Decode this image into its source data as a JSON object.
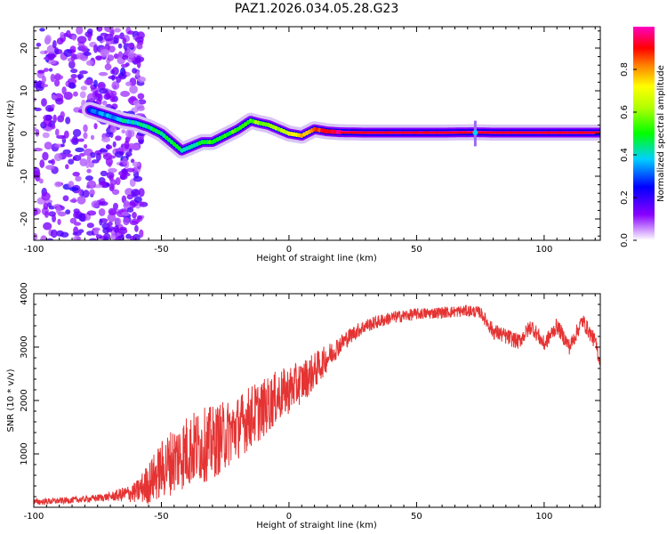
{
  "chart_data": [
    {
      "type": "heatmap",
      "title": "PAZ1.2026.034.05.28.G23",
      "xlabel": "Height of straight line (km)",
      "ylabel": "Frequency (Hz)",
      "xlim": [
        -100,
        122
      ],
      "ylim": [
        -25,
        25
      ],
      "xticks": [
        "-100",
        "-50",
        "0",
        "50",
        "100"
      ],
      "yticks": [
        "-20",
        "-10",
        "0",
        "10",
        "20"
      ],
      "colorbar": {
        "label": "Normalized spectral amplitude",
        "range": [
          0,
          1
        ],
        "ticks": [
          "0.0",
          "0.2",
          "0.4",
          "0.6",
          "0.8"
        ]
      },
      "ridge": {
        "x": [
          -78,
          -70,
          -65,
          -60,
          -55,
          -50,
          -46,
          -42,
          -38,
          -34,
          -30,
          -25,
          -20,
          -15,
          -12,
          -8,
          -4,
          0,
          5,
          10,
          15,
          20,
          30,
          60,
          73,
          80,
          100,
          122
        ],
        "y": [
          5.5,
          4,
          3,
          2.5,
          1.5,
          0,
          -2,
          -4,
          -3,
          -2,
          -2,
          -0.5,
          1,
          3,
          2.5,
          2,
          1,
          0,
          -0.5,
          1,
          0.5,
          0.3,
          0.2,
          0.2,
          0.3,
          0.2,
          0.2,
          0.2
        ],
        "amp": [
          0.3,
          0.35,
          0.4,
          0.4,
          0.45,
          0.45,
          0.5,
          0.45,
          0.4,
          0.5,
          0.5,
          0.5,
          0.55,
          0.55,
          0.6,
          0.6,
          0.6,
          0.7,
          0.75,
          0.85,
          0.9,
          0.95,
          1,
          1,
          1,
          1,
          1,
          1
        ]
      },
      "noise_region_x": [
        -100,
        -57
      ]
    },
    {
      "type": "line",
      "xlabel": "Height of straight line (km)",
      "ylabel": "SNR (10 * v/v)",
      "xlim": [
        -100,
        122
      ],
      "ylim": [
        0,
        4000
      ],
      "xticks": [
        "-100",
        "-50",
        "0",
        "50",
        "100"
      ],
      "yticks": [
        "1000",
        "2000",
        "3000",
        "4000"
      ],
      "color": "#e53333",
      "series": [
        {
          "name": "SNR",
          "x": [
            -100,
            -90,
            -80,
            -70,
            -60,
            -55,
            -50,
            -45,
            -40,
            -35,
            -30,
            -25,
            -20,
            -15,
            -10,
            -5,
            0,
            5,
            10,
            15,
            20,
            25,
            30,
            40,
            50,
            60,
            70,
            75,
            80,
            85,
            90,
            95,
            100,
            105,
            110,
            115,
            120,
            122
          ],
          "y": [
            100,
            120,
            150,
            200,
            280,
            450,
            700,
            900,
            1050,
            1150,
            1200,
            1350,
            1500,
            1700,
            1850,
            2050,
            2200,
            2350,
            2550,
            2800,
            3050,
            3250,
            3400,
            3550,
            3620,
            3650,
            3680,
            3650,
            3300,
            3200,
            3100,
            3400,
            3050,
            3400,
            3000,
            3500,
            3100,
            2700
          ],
          "spread": [
            60,
            60,
            60,
            80,
            200,
            400,
            550,
            650,
            700,
            700,
            700,
            650,
            600,
            600,
            550,
            500,
            450,
            400,
            350,
            250,
            180,
            150,
            130,
            120,
            110,
            110,
            110,
            110,
            150,
            150,
            150,
            150,
            150,
            150,
            150,
            150,
            150,
            150
          ]
        }
      ]
    }
  ]
}
